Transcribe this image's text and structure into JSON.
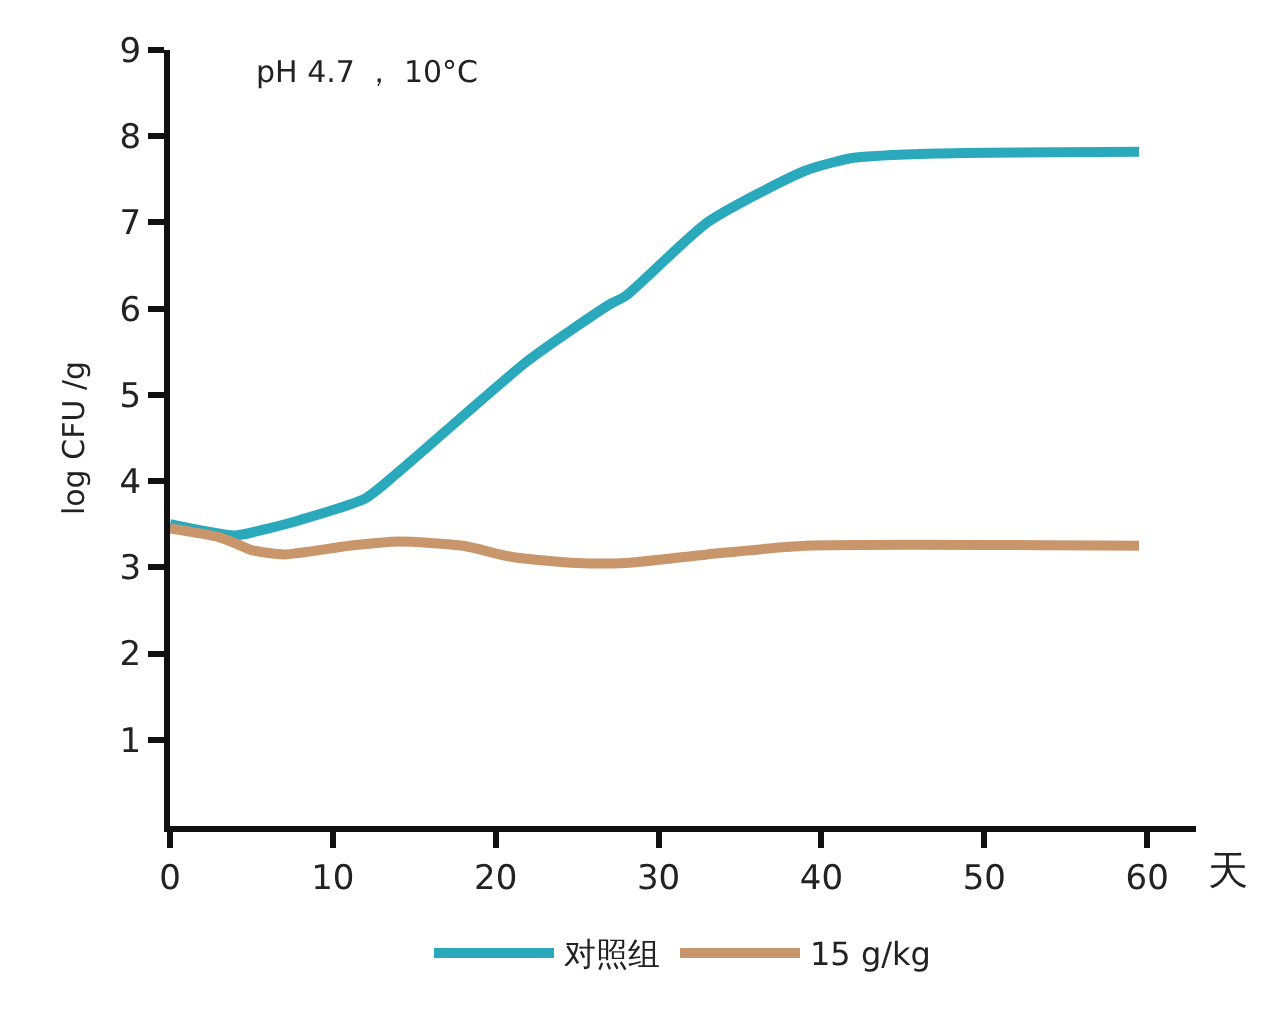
{
  "chart_data": {
    "type": "line",
    "ylabel": "log CFU /g",
    "xlabel": "天",
    "annotations": [
      "pH 4.7 ， 10°C"
    ],
    "xlim": [
      0,
      63
    ],
    "xticks": [
      0,
      10,
      20,
      30,
      40,
      50,
      60
    ],
    "ylim": [
      0,
      9
    ],
    "yticks": [
      1,
      2,
      3,
      4,
      5,
      6,
      7,
      8,
      9
    ],
    "grid": false,
    "legend": "bottom",
    "marker": "none",
    "line_style": "solid",
    "series": [
      {
        "name": "对照组",
        "color": "#2aa9bd",
        "x": [
          0,
          4,
          6,
          8,
          12,
          14,
          22,
          27,
          28,
          33,
          39,
          42,
          47,
          59.5
        ],
        "values": [
          3.5,
          3.37,
          3.45,
          3.55,
          3.8,
          4.1,
          5.4,
          6.05,
          6.15,
          7.0,
          7.6,
          7.75,
          7.8,
          7.82
        ]
      },
      {
        "name": "15 g/kg",
        "color": "#c8966a",
        "x": [
          0,
          3,
          4,
          5,
          7,
          11,
          14,
          18,
          21,
          25,
          28,
          33,
          39,
          59.5
        ],
        "values": [
          3.45,
          3.35,
          3.28,
          3.2,
          3.15,
          3.25,
          3.3,
          3.25,
          3.12,
          3.05,
          3.05,
          3.15,
          3.25,
          3.25
        ]
      }
    ]
  }
}
